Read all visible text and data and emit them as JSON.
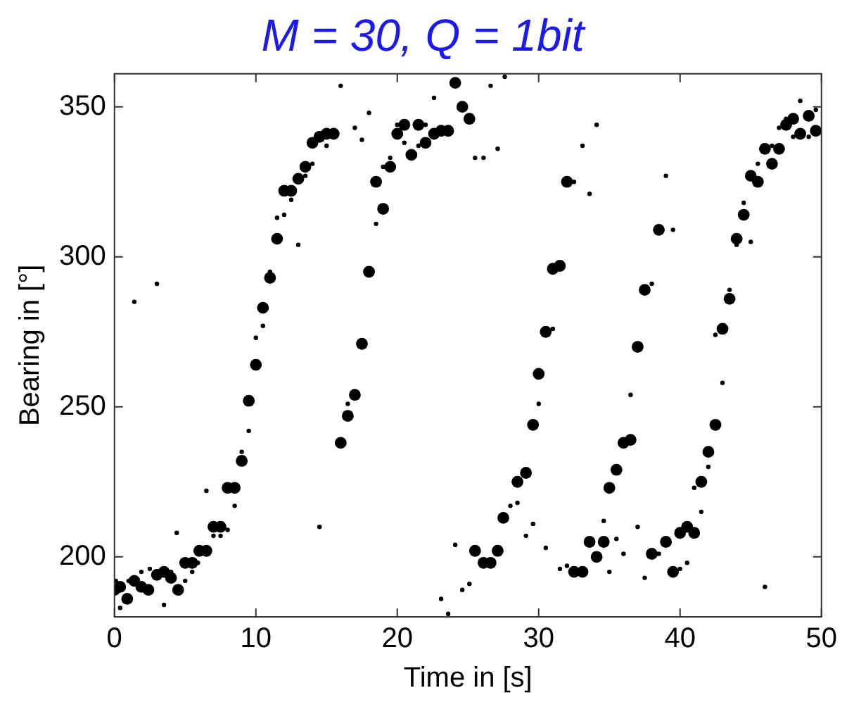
{
  "chart_data": {
    "type": "scatter",
    "title": "M = 30, Q = 1bit",
    "xlabel": "Time in [s]",
    "ylabel": "Bearing in [°]",
    "xlim": [
      0,
      50
    ],
    "ylim": [
      180,
      361
    ],
    "xticks": [
      0,
      10,
      20,
      30,
      40,
      50
    ],
    "yticks": [
      200,
      250,
      300,
      350
    ],
    "grid": false,
    "legend": false,
    "marker": "circle",
    "series": [
      {
        "color": "#000000",
        "x": [
          0,
          0.4,
          0.9,
          1.4,
          1.9,
          2.4,
          3.0,
          3.5,
          4.0,
          4.5,
          5.0,
          5.5,
          6.0,
          6.5,
          7.0,
          7.5,
          8.0,
          8.5,
          9.0,
          9.5,
          10.0,
          10.5,
          11.0,
          11.5,
          12.0,
          12.5,
          13.0,
          13.5,
          14.0,
          14.5,
          15.0,
          15.5,
          16.0,
          16.5,
          17.0,
          17.5,
          18.0,
          18.5,
          19.0,
          19.5,
          20.0,
          20.5,
          21.0,
          21.5,
          22.0,
          22.6,
          23.1,
          23.6,
          24.1,
          24.6,
          25.1,
          25.5,
          26.1,
          26.6,
          27.1,
          27.5,
          28.5,
          29.1,
          29.6,
          30.0,
          30.5,
          31.0,
          31.5,
          32.0,
          32.5,
          33.1,
          33.6,
          34.1,
          34.6,
          35.0,
          35.5,
          36.0,
          36.5,
          37.0,
          37.5,
          38.0,
          38.5,
          39.0,
          39.5,
          40.0,
          40.5,
          41.0,
          41.5,
          42.0,
          42.5,
          43.0,
          43.5,
          44.0,
          44.5,
          45.0,
          45.5,
          46.0,
          46.5,
          47.0,
          47.5,
          48.0,
          48.5,
          49.1,
          49.6
        ],
        "values": [
          189,
          190,
          186,
          192,
          190,
          189,
          194,
          195,
          193,
          189,
          198,
          198,
          202,
          202,
          210,
          210,
          223,
          223,
          232,
          252,
          264,
          283,
          293,
          306,
          322,
          322,
          326,
          330,
          338,
          340,
          341,
          341,
          238,
          247,
          254,
          271,
          295,
          325,
          316,
          330,
          341,
          344,
          334,
          344,
          338,
          341,
          342,
          342,
          358,
          350,
          346,
          202,
          198,
          198,
          202,
          213,
          225,
          228,
          244,
          261,
          275,
          296,
          297,
          325,
          195,
          195,
          205,
          200,
          205,
          223,
          229,
          238,
          239,
          270,
          289,
          201,
          309,
          205,
          195,
          208,
          210,
          208,
          225,
          235,
          244,
          276,
          286,
          306,
          314,
          327,
          325,
          336,
          331,
          336,
          344,
          346,
          341,
          347,
          342
        ]
      },
      {
        "color": "#000000",
        "x": [
          0.1,
          0.4,
          1.0,
          1.4,
          1.9,
          2.5,
          3.0,
          3.5,
          4.0,
          4.4,
          5.0,
          5.5,
          5.9,
          6.5,
          7.0,
          7.5,
          8.0,
          8.5,
          9.0,
          9.5,
          10.0,
          10.5,
          11.0,
          11.5,
          12.0,
          12.5,
          13.0,
          13.5,
          14.0,
          14.5,
          15.0,
          16.0,
          16.5,
          17.0,
          17.5,
          18.0,
          18.5,
          19.0,
          19.5,
          20.0,
          20.5,
          21.5,
          22.0,
          22.6,
          23.1,
          23.6,
          24.1,
          24.6,
          25.1,
          25.5,
          26.1,
          26.6,
          27.1,
          27.6,
          28.0,
          28.5,
          29.1,
          29.6,
          30.0,
          30.5,
          31.0,
          31.5,
          32.0,
          32.5,
          33.1,
          33.6,
          34.1,
          34.6,
          35.0,
          35.5,
          36.0,
          36.5,
          37.0,
          37.5,
          38.0,
          38.5,
          39.0,
          39.5,
          40.0,
          40.5,
          41.0,
          41.5,
          42.0,
          42.5,
          43.0,
          43.5,
          44.0,
          44.5,
          45.0,
          45.5,
          46.0,
          46.5,
          47.0,
          47.5,
          48.0,
          48.5,
          49.1,
          49.6
        ],
        "values": [
          192,
          183,
          192,
          285,
          195,
          196,
          291,
          184,
          195,
          208,
          192,
          195,
          198,
          222,
          207,
          207,
          209,
          217,
          235,
          242,
          273,
          277,
          295,
          313,
          314,
          319,
          304,
          327,
          331,
          210,
          337,
          357,
          251,
          343,
          339,
          348,
          311,
          330,
          333,
          344,
          338,
          337,
          344,
          353,
          186,
          181,
          204,
          189,
          191,
          333,
          333,
          357,
          336,
          360,
          217,
          218,
          207,
          211,
          251,
          203,
          276,
          196,
          197,
          325,
          337,
          321,
          344,
          212,
          195,
          206,
          201,
          254,
          210,
          193,
          291,
          201,
          327,
          309,
          196,
          198,
          223,
          215,
          230,
          274,
          258,
          289,
          304,
          318,
          305,
          331,
          190,
          337,
          343,
          346,
          340,
          352,
          340,
          349
        ]
      }
    ]
  }
}
